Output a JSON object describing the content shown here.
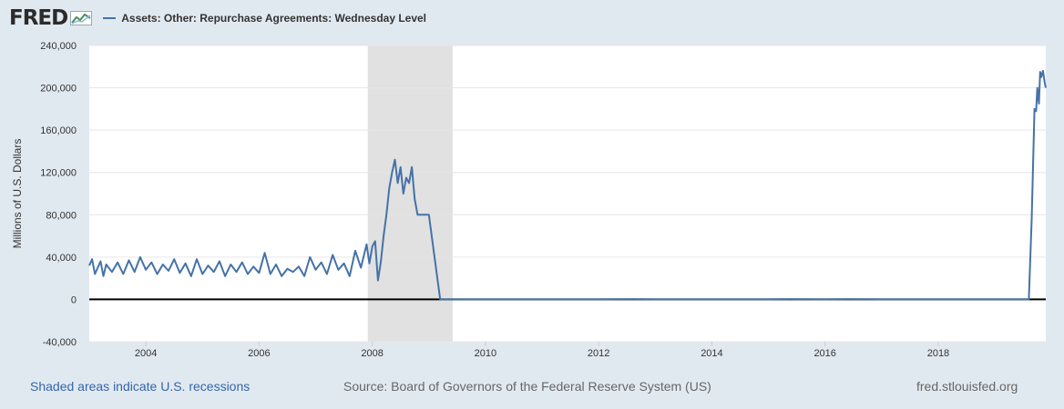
{
  "logo": {
    "text": "FRED"
  },
  "legend": {
    "series_label": "Assets: Other: Repurchase Agreements: Wednesday Level",
    "color": "#4572a7"
  },
  "footer": {
    "recession_note": "Shaded areas indicate U.S. recessions",
    "source": "Source: Board of Governors of the Federal Reserve System (US)",
    "site": "fred.stlouisfed.org"
  },
  "chart_data": {
    "type": "line",
    "ylabel": "Millions of U.S. Dollars",
    "xlim": [
      2003.0,
      2019.9
    ],
    "ylim": [
      -40000,
      240000
    ],
    "y_ticks": [
      -40000,
      0,
      40000,
      80000,
      120000,
      160000,
      200000,
      240000
    ],
    "y_tick_labels": [
      "-40,000",
      "0",
      "40,000",
      "80,000",
      "120,000",
      "160,000",
      "200,000",
      "240,000"
    ],
    "x_ticks": [
      2004,
      2006,
      2008,
      2010,
      2012,
      2014,
      2016,
      2018
    ],
    "x_tick_labels": [
      "2004",
      "2006",
      "2008",
      "2010",
      "2012",
      "2014",
      "2016",
      "2018"
    ],
    "grid": "horizontal",
    "recession_shading": [
      [
        2007.92,
        2009.42
      ]
    ],
    "series": [
      {
        "color": "#4572a7",
        "x": [
          2003.0,
          2003.05,
          2003.1,
          2003.15,
          2003.2,
          2003.25,
          2003.3,
          2003.4,
          2003.5,
          2003.6,
          2003.7,
          2003.8,
          2003.9,
          2004.0,
          2004.1,
          2004.2,
          2004.3,
          2004.4,
          2004.5,
          2004.6,
          2004.7,
          2004.8,
          2004.9,
          2005.0,
          2005.1,
          2005.2,
          2005.3,
          2005.4,
          2005.5,
          2005.6,
          2005.7,
          2005.8,
          2005.9,
          2006.0,
          2006.1,
          2006.2,
          2006.3,
          2006.4,
          2006.5,
          2006.6,
          2006.7,
          2006.8,
          2006.9,
          2007.0,
          2007.1,
          2007.2,
          2007.3,
          2007.4,
          2007.5,
          2007.6,
          2007.7,
          2007.8,
          2007.9,
          2007.95,
          2008.0,
          2008.05,
          2008.1,
          2008.15,
          2008.2,
          2008.25,
          2008.3,
          2008.35,
          2008.4,
          2008.45,
          2008.5,
          2008.55,
          2008.6,
          2008.65,
          2008.7,
          2008.75,
          2008.8,
          2008.85,
          2008.9,
          2009.0,
          2009.1,
          2009.2,
          2010.0,
          2011.0,
          2012.0,
          2012.6,
          2013.0,
          2014.0,
          2015.0,
          2015.4,
          2016.0,
          2016.4,
          2017.0,
          2018.0,
          2019.0,
          2019.6,
          2019.65,
          2019.7,
          2019.73,
          2019.75,
          2019.78,
          2019.8,
          2019.82,
          2019.85,
          2019.88,
          2019.9
        ],
        "y": [
          32000,
          38000,
          24000,
          30000,
          36000,
          22000,
          33000,
          26000,
          35000,
          24000,
          37000,
          26000,
          40000,
          28000,
          35000,
          24000,
          33000,
          27000,
          38000,
          25000,
          34000,
          22000,
          38000,
          24000,
          32000,
          26000,
          36000,
          22000,
          33000,
          26000,
          35000,
          24000,
          31000,
          25000,
          44000,
          24000,
          33000,
          22000,
          29000,
          26000,
          31000,
          22000,
          40000,
          28000,
          35000,
          24000,
          42000,
          28000,
          34000,
          22000,
          46000,
          30000,
          52000,
          34000,
          50000,
          55000,
          18000,
          35000,
          60000,
          80000,
          105000,
          120000,
          132000,
          110000,
          125000,
          100000,
          115000,
          110000,
          125000,
          95000,
          80000,
          80000,
          80000,
          80000,
          40000,
          0,
          0,
          0,
          0,
          300,
          0,
          0,
          0,
          300,
          0,
          300,
          0,
          0,
          0,
          0,
          75000,
          180000,
          178000,
          200000,
          185000,
          215000,
          210000,
          216000,
          205000,
          200000
        ]
      }
    ]
  }
}
